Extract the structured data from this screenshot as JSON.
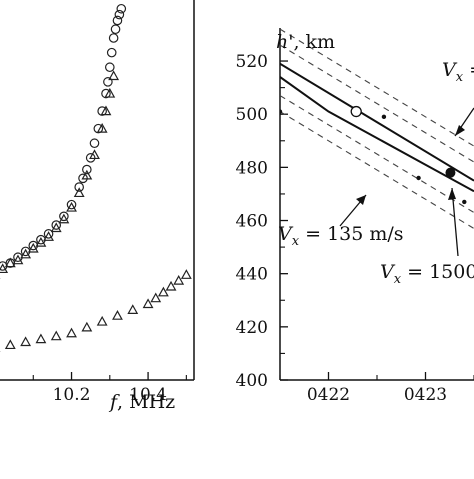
{
  "chart_data": [
    {
      "type": "scatter",
      "panel": "left",
      "xlabel_var": "f",
      "xlabel_unit": ", MHz",
      "ylabel": "",
      "x_ticks": [
        "10.2",
        "10.4"
      ],
      "xlim": [
        10.0,
        10.52
      ],
      "ylim": [
        400,
        530
      ],
      "series": [
        {
          "marker": "circle",
          "x": [
            10.0,
            10.02,
            10.04,
            10.06,
            10.08,
            10.1,
            10.12,
            10.14,
            10.16,
            10.18,
            10.2,
            10.22,
            10.23,
            10.24,
            10.25,
            10.26,
            10.27,
            10.28,
            10.29,
            10.295,
            10.3,
            10.305,
            10.31,
            10.315,
            10.32,
            10.325,
            10.33
          ],
          "y": [
            437,
            439,
            440,
            442,
            444,
            446,
            448,
            450,
            453,
            456,
            460,
            466,
            469,
            472,
            476,
            481,
            486,
            492,
            498,
            502,
            507,
            512,
            517,
            520,
            523,
            525,
            527
          ]
        },
        {
          "marker": "triangle",
          "x": [
            10.0,
            10.02,
            10.04,
            10.06,
            10.08,
            10.1,
            10.12,
            10.14,
            10.16,
            10.18,
            10.2,
            10.22,
            10.24,
            10.26,
            10.28,
            10.29,
            10.3,
            10.31
          ],
          "y": [
            436,
            438,
            440,
            441,
            443,
            445,
            447,
            449,
            452,
            455,
            459,
            464,
            470,
            477,
            486,
            492,
            498,
            504
          ]
        },
        {
          "marker": "triangle",
          "x": [
            10.0,
            10.04,
            10.08,
            10.12,
            10.16,
            10.2,
            10.24,
            10.28,
            10.32,
            10.36,
            10.4,
            10.42,
            10.44,
            10.46,
            10.48,
            10.5
          ],
          "y": [
            411,
            412,
            413,
            414,
            415,
            416,
            418,
            420,
            422,
            424,
            426,
            428,
            430,
            432,
            434,
            436
          ]
        }
      ]
    },
    {
      "type": "line",
      "panel": "right",
      "ylabel_var": "h'",
      "ylabel_unit": ", km",
      "y_ticks": [
        "400",
        "420",
        "440",
        "460",
        "480",
        "500",
        "520"
      ],
      "x_ticks": [
        "0422",
        "0423"
      ],
      "ylim": [
        400,
        525
      ],
      "xlim": [
        0.0,
        1.4
      ],
      "series": [
        {
          "style": "solid",
          "x": [
            0.0,
            1.4
          ],
          "y": [
            519,
            475
          ]
        },
        {
          "style": "solid",
          "x": [
            0.0,
            0.35,
            0.7,
            1.05,
            1.4
          ],
          "y": [
            514,
            501,
            491,
            481,
            471
          ]
        },
        {
          "style": "dashed",
          "x": [
            0.0,
            1.4
          ],
          "y": [
            532,
            488
          ]
        },
        {
          "style": "dashed",
          "x": [
            0.0,
            1.4
          ],
          "y": [
            526,
            482
          ]
        },
        {
          "style": "dashed",
          "x": [
            0.0,
            1.4
          ],
          "y": [
            507,
            463
          ]
        },
        {
          "style": "dashed",
          "x": [
            0.0,
            1.4
          ],
          "y": [
            501,
            457
          ]
        }
      ],
      "markers": [
        {
          "marker": "open-circle",
          "x": 0.55,
          "y": 501
        },
        {
          "marker": "filled-circle",
          "x": 1.23,
          "y": 478
        },
        {
          "marker": "dot",
          "x": 0.0,
          "y": 501
        },
        {
          "marker": "dot",
          "x": 0.75,
          "y": 499
        },
        {
          "marker": "dot",
          "x": 1.0,
          "y": 476
        },
        {
          "marker": "dot",
          "x": 1.33,
          "y": 467
        }
      ],
      "annotations": [
        {
          "var": "V",
          "sub": "x",
          "text": " = 135 m/s"
        },
        {
          "var": "V",
          "sub": "x",
          "text": " = 1500"
        },
        {
          "var": "V",
          "sub": "x",
          "text": " = "
        }
      ]
    }
  ]
}
